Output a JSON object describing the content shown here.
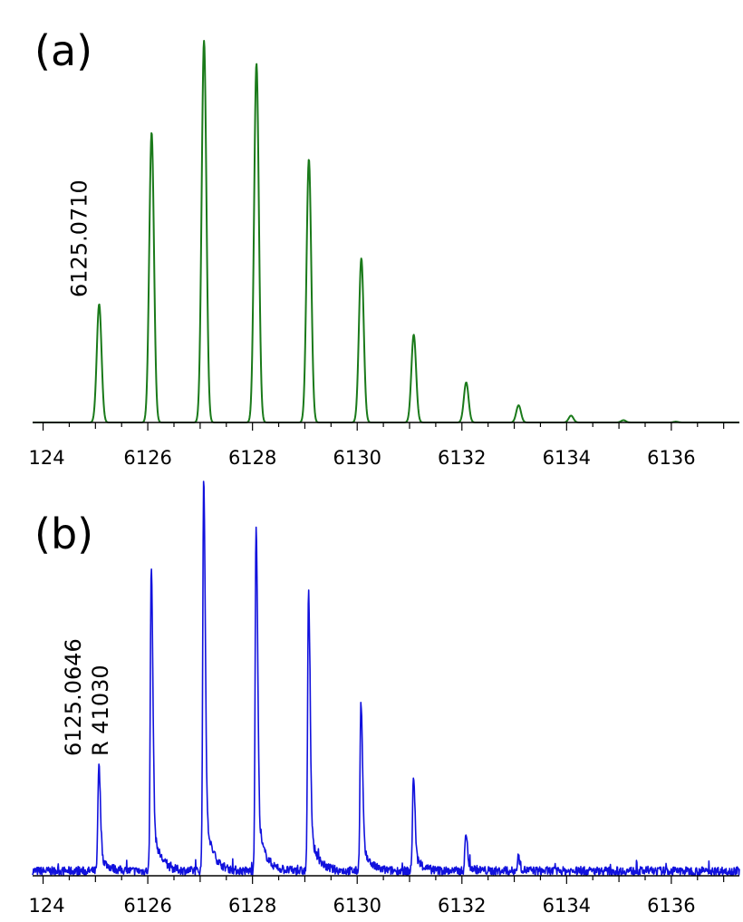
{
  "chart_data": [
    {
      "type": "line",
      "panel_label": "(a)",
      "color": "#1a7a1a",
      "xlim": [
        6123.8,
        6137.3
      ],
      "x_ticks": [
        "124",
        "6126",
        "6128",
        "6130",
        "6132",
        "6134",
        "6136"
      ],
      "x_tick_values": [
        6124,
        6126,
        6128,
        6130,
        6132,
        6134,
        6136
      ],
      "peaks": [
        {
          "x": 6125.071,
          "y": 0.31
        },
        {
          "x": 6126.073,
          "y": 0.76
        },
        {
          "x": 6127.074,
          "y": 1.0
        },
        {
          "x": 6128.076,
          "y": 0.94
        },
        {
          "x": 6129.077,
          "y": 0.69
        },
        {
          "x": 6130.079,
          "y": 0.43
        },
        {
          "x": 6131.08,
          "y": 0.23
        },
        {
          "x": 6132.082,
          "y": 0.105
        },
        {
          "x": 6133.083,
          "y": 0.045
        },
        {
          "x": 6134.085,
          "y": 0.018
        },
        {
          "x": 6135.086,
          "y": 0.006
        },
        {
          "x": 6136.088,
          "y": 0.002
        }
      ],
      "annotations": [
        {
          "lines": [
            "6125.0710"
          ],
          "x": 6125.071
        }
      ]
    },
    {
      "type": "line",
      "panel_label": "(b)",
      "color": "#1111dd",
      "xlim": [
        6123.8,
        6137.3
      ],
      "x_ticks": [
        "124",
        "6126",
        "6128",
        "6130",
        "6132",
        "6134",
        "6136"
      ],
      "x_tick_values": [
        6124,
        6126,
        6128,
        6130,
        6132,
        6134,
        6136
      ],
      "peaks": [
        {
          "x": 6125.065,
          "y": 0.27
        },
        {
          "x": 6126.066,
          "y": 0.78
        },
        {
          "x": 6127.068,
          "y": 1.0
        },
        {
          "x": 6128.069,
          "y": 0.88
        },
        {
          "x": 6129.071,
          "y": 0.71
        },
        {
          "x": 6130.072,
          "y": 0.43
        },
        {
          "x": 6131.074,
          "y": 0.24
        },
        {
          "x": 6132.075,
          "y": 0.095
        },
        {
          "x": 6133.077,
          "y": 0.035
        }
      ],
      "annotations": [
        {
          "lines": [
            "6125.0646",
            "R 41030"
          ],
          "x": 6125.065
        }
      ]
    }
  ]
}
